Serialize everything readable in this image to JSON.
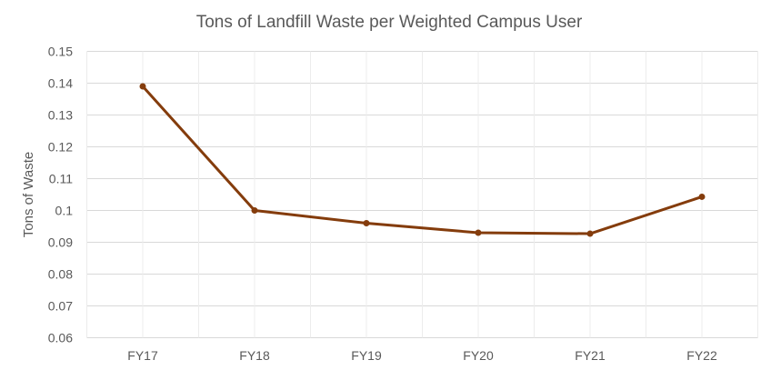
{
  "chart_data": {
    "type": "line",
    "title": "Tons of Landfill Waste per Weighted Campus User",
    "xlabel": "",
    "ylabel": "Tons of Waste",
    "categories": [
      "FY17",
      "FY18",
      "FY19",
      "FY20",
      "FY21",
      "FY22"
    ],
    "series": [
      {
        "name": "Tons of Waste",
        "values": [
          0.139,
          0.1,
          0.096,
          0.093,
          0.0927,
          0.1043
        ],
        "color": "#843C0C"
      }
    ],
    "ylim": [
      0.06,
      0.15
    ],
    "yticks": [
      "0.06",
      "0.07",
      "0.08",
      "0.09",
      "0.1",
      "0.11",
      "0.12",
      "0.13",
      "0.14",
      "0.15"
    ],
    "grid": true,
    "legend": "none"
  }
}
